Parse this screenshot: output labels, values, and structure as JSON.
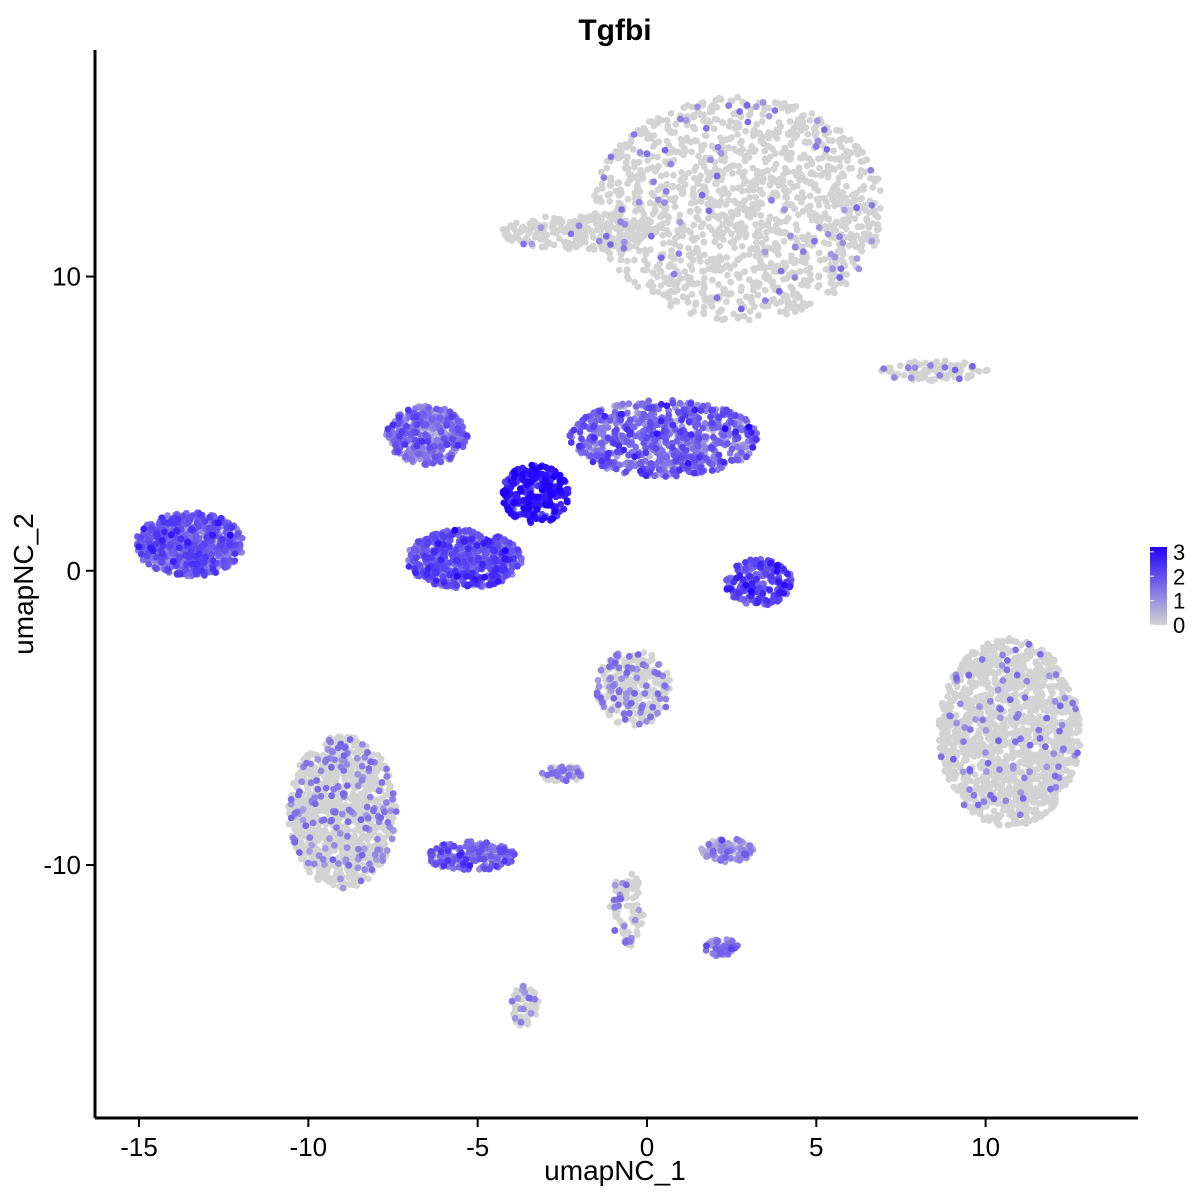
{
  "chart_data": {
    "type": "scatter",
    "title": "Tgfbi",
    "xlabel": "umapNC_1",
    "ylabel": "umapNC_2",
    "xlim": [
      -16.3,
      14.5
    ],
    "ylim": [
      -18.6,
      17.7
    ],
    "x_ticks": [
      -15,
      -10,
      -5,
      0,
      5,
      10
    ],
    "x_tick_labels": [
      "-15",
      "-10",
      "-5",
      "0",
      "5",
      "10"
    ],
    "y_ticks": [
      -10,
      0,
      10
    ],
    "y_tick_labels": [
      "-10",
      "0",
      "10"
    ],
    "grid": false,
    "legend": {
      "placement": "right",
      "type": "colorbar",
      "labels": [
        "3",
        "2",
        "1",
        "0"
      ],
      "values": [
        3,
        2,
        1,
        0
      ],
      "range": [
        0,
        3.2
      ],
      "low_color": "#d3d3d3",
      "high_color": "#2200ff"
    },
    "clusters": [
      {
        "name": "top-right",
        "cx": 2.7,
        "cy": 12.3,
        "rx": 4.3,
        "ry": 3.8,
        "expression": 0.05,
        "n": 1400
      },
      {
        "name": "top-arm",
        "cx": -2.0,
        "cy": 11.5,
        "rx": 2.3,
        "ry": 0.6,
        "expression": 0.05,
        "n": 220
      },
      {
        "name": "right-small",
        "cx": 8.5,
        "cy": 6.8,
        "rx": 1.6,
        "ry": 0.35,
        "expression": 0.1,
        "n": 90
      },
      {
        "name": "right-large",
        "cx": 10.7,
        "cy": -5.5,
        "rx": 2.1,
        "ry": 3.2,
        "expression": 0.05,
        "n": 1400
      },
      {
        "name": "left",
        "cx": -13.5,
        "cy": 0.9,
        "rx": 1.6,
        "ry": 1.1,
        "expression": 1.6,
        "n": 650
      },
      {
        "name": "center-right-arm",
        "cx": 0.5,
        "cy": 4.5,
        "rx": 2.8,
        "ry": 1.3,
        "expression": 1.5,
        "n": 700
      },
      {
        "name": "center-left-arm",
        "cx": -6.5,
        "cy": 4.6,
        "rx": 1.2,
        "ry": 1.0,
        "expression": 1.3,
        "n": 350
      },
      {
        "name": "center-core",
        "cx": -3.3,
        "cy": 2.6,
        "rx": 1.0,
        "ry": 1.0,
        "expression": 2.7,
        "n": 250
      },
      {
        "name": "center-lower-lobe",
        "cx": -5.4,
        "cy": 0.4,
        "rx": 1.7,
        "ry": 1.0,
        "expression": 1.8,
        "n": 550
      },
      {
        "name": "small-right-of-center",
        "cx": 3.3,
        "cy": -0.4,
        "rx": 1.0,
        "ry": 0.8,
        "expression": 1.9,
        "n": 220
      },
      {
        "name": "bottom-left",
        "cx": -9.0,
        "cy": -8.2,
        "rx": 1.6,
        "ry": 2.6,
        "expression": 0.15,
        "n": 1000
      },
      {
        "name": "bottom-left-tail",
        "cx": -5.2,
        "cy": -9.7,
        "rx": 1.3,
        "ry": 0.5,
        "expression": 1.4,
        "n": 180
      },
      {
        "name": "bottom-center",
        "cx": -0.4,
        "cy": -4.0,
        "rx": 1.1,
        "ry": 1.3,
        "expression": 0.25,
        "n": 280
      },
      {
        "name": "bottom-center-small",
        "cx": 2.4,
        "cy": -9.5,
        "rx": 0.8,
        "ry": 0.4,
        "expression": 0.7,
        "n": 110
      },
      {
        "name": "bottom-strand",
        "cx": -0.6,
        "cy": -11.5,
        "rx": 0.5,
        "ry": 1.3,
        "expression": 0.2,
        "n": 90
      },
      {
        "name": "bottom-strand-end",
        "cx": 2.2,
        "cy": -12.8,
        "rx": 0.5,
        "ry": 0.3,
        "expression": 1.2,
        "n": 40
      },
      {
        "name": "bottom-small",
        "cx": -3.6,
        "cy": -14.8,
        "rx": 0.4,
        "ry": 0.7,
        "expression": 0.2,
        "n": 70
      },
      {
        "name": "mid-left-small",
        "cx": -2.5,
        "cy": -6.9,
        "rx": 0.6,
        "ry": 0.3,
        "expression": 0.3,
        "n": 60
      }
    ]
  }
}
